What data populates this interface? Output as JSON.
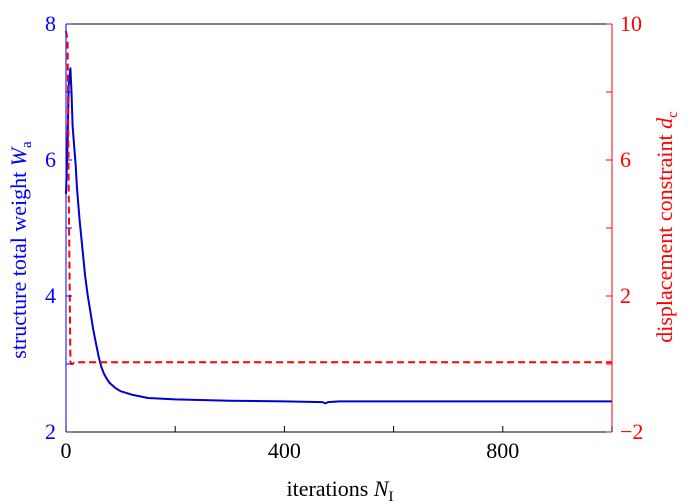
{
  "chart_data": {
    "type": "line",
    "xlabel": {
      "text": "iterations ",
      "var": "N",
      "sub": "I"
    },
    "ylabel_left": {
      "text": "structure total weight ",
      "var": "W",
      "sub": "a"
    },
    "ylabel_right": {
      "text": "displacement constraint ",
      "var": "d",
      "sub": "c"
    },
    "xlim": [
      0,
      1000
    ],
    "ylim_left": [
      2,
      8
    ],
    "ylim_right": [
      -2,
      10
    ],
    "x_ticks": [
      0,
      200,
      400,
      600,
      800,
      1000
    ],
    "x_tick_labels": [
      "0",
      "",
      "400",
      "",
      "800",
      ""
    ],
    "y_left_ticks": [
      2,
      3,
      4,
      5,
      6,
      7,
      8
    ],
    "y_left_tick_labels": [
      "2",
      "",
      "4",
      "",
      "6",
      "",
      "8"
    ],
    "y_right_ticks": [
      -2,
      0,
      2,
      4,
      6,
      8,
      10
    ],
    "y_right_tick_labels": [
      "−2",
      "",
      "2",
      "",
      "6",
      "",
      "10"
    ],
    "grid": false,
    "colors": {
      "left_axis": "#0000ff",
      "right_axis": "#ff0000",
      "frame": "#000000"
    },
    "series": [
      {
        "axis": "left",
        "style": "solid",
        "color": "#0000d0",
        "x": [
          0,
          3,
          5,
          8,
          10,
          12,
          15,
          18,
          20,
          25,
          30,
          35,
          40,
          45,
          50,
          55,
          60,
          65,
          70,
          75,
          80,
          90,
          100,
          120,
          150,
          200,
          300,
          400,
          470,
          475,
          480,
          500,
          600,
          700,
          800,
          900,
          1000
        ],
        "y": [
          5.5,
          6.3,
          7.1,
          7.35,
          7.0,
          6.5,
          6.2,
          5.9,
          5.6,
          5.1,
          4.7,
          4.3,
          4.0,
          3.75,
          3.5,
          3.3,
          3.1,
          2.95,
          2.85,
          2.78,
          2.72,
          2.65,
          2.6,
          2.55,
          2.5,
          2.48,
          2.46,
          2.45,
          2.44,
          2.42,
          2.44,
          2.45,
          2.45,
          2.45,
          2.45,
          2.45,
          2.45
        ]
      },
      {
        "axis": "right",
        "style": "dashed",
        "color": "#ff0000",
        "x": [
          0,
          3,
          5,
          8,
          10,
          12,
          15,
          20,
          50,
          100,
          200,
          400,
          600,
          800,
          1000
        ],
        "y": [
          9.8,
          9.5,
          5.2,
          0.05,
          0.0,
          0.0,
          0.05,
          0.05,
          0.05,
          0.05,
          0.05,
          0.05,
          0.05,
          0.05,
          0.05
        ]
      }
    ]
  }
}
